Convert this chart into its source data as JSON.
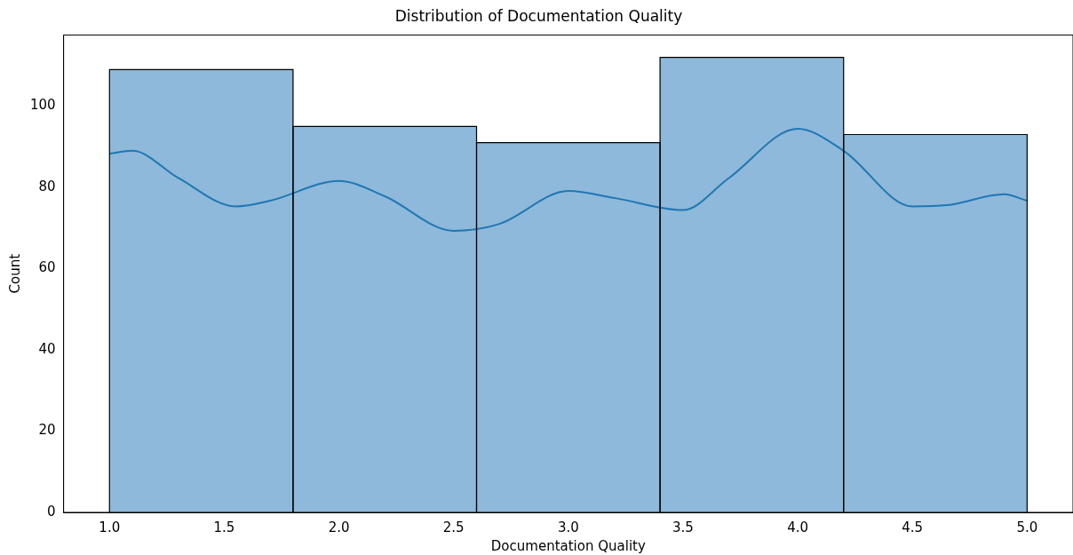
{
  "chart_data": {
    "type": "histogram",
    "title": "Distribution of Documentation Quality",
    "xlabel": "Documentation Quality",
    "ylabel": "Count",
    "bins": [
      1.0,
      1.8,
      2.6,
      3.4,
      4.2,
      5.0
    ],
    "values": [
      109,
      95,
      91,
      112,
      93
    ],
    "color": "#8eb9da",
    "series": [
      {
        "type": "line",
        "color": "#1f77b4",
        "x": [
          1.0,
          1.1,
          1.3,
          1.55,
          1.7,
          2.0,
          2.2,
          2.5,
          2.7,
          3.0,
          3.2,
          3.5,
          3.7,
          4.0,
          4.2,
          4.5,
          4.65,
          4.9,
          5.0
        ],
        "values": [
          88.3,
          89,
          82.3,
          75.3,
          76.7,
          81.6,
          77.8,
          69.3,
          71,
          79.1,
          77.4,
          74.4,
          82.3,
          94.4,
          89,
          75.3,
          75.6,
          78.3,
          76.7
        ]
      }
    ],
    "xlim": [
      0.8,
      5.2
    ],
    "xticks": [
      {
        "value": 1,
        "label": "1.0"
      },
      {
        "value": 1.5,
        "label": "1.5"
      },
      {
        "value": 2,
        "label": "2.0"
      },
      {
        "value": 2.5,
        "label": "2.5"
      },
      {
        "value": 3,
        "label": "3.0"
      },
      {
        "value": 3.5,
        "label": "3.5"
      },
      {
        "value": 4,
        "label": "4.0"
      },
      {
        "value": 4.5,
        "label": "4.5"
      },
      {
        "value": 5,
        "label": "5.0"
      }
    ],
    "ylim": [
      0,
      117.5
    ],
    "yticks": [
      0,
      20,
      40,
      60,
      80,
      100
    ],
    "grid": false,
    "legend": false
  }
}
